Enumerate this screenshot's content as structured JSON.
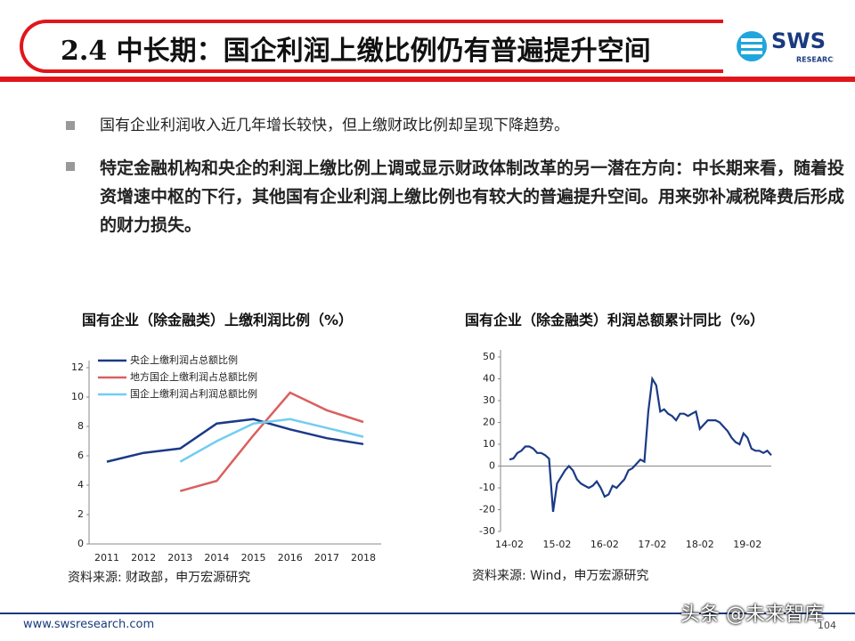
{
  "header": {
    "title": "2.4 中长期：国企利润上缴比例仍有普遍提升空间",
    "logo": "SWS",
    "logo_sub": "RESEARCH"
  },
  "bullets": [
    "国有企业利润收入近几年增长较快，但上缴财政比例却呈现下降趋势。",
    "特定金融机构和央企的利润上缴比例上调或显示财政体制改革的另一潜在方向：中长期来看，随着投资增速中枢的下行，其他国有企业利润上缴比例也有较大的普遍提升空间。用来弥补减税降费后形成的财力损失。"
  ],
  "chart_data": [
    {
      "type": "line",
      "title": "国有企业（除金融类）上缴利润比例（%）",
      "source": "资料来源: 财政部，申万宏源研究",
      "categories": [
        "2011",
        "2012",
        "2013",
        "2014",
        "2015",
        "2016",
        "2017",
        "2018"
      ],
      "series": [
        {
          "name": "央企上缴利润占总额比例",
          "color": "#1b3a86",
          "values": [
            5.6,
            6.2,
            6.5,
            8.2,
            8.5,
            7.8,
            7.2,
            6.8
          ]
        },
        {
          "name": "地方国企上缴利润占总额比例",
          "color": "#d9605f",
          "values": [
            null,
            null,
            3.6,
            4.3,
            7.4,
            10.3,
            9.1,
            8.3
          ]
        },
        {
          "name": "国企上缴利润占利润总额比例",
          "color": "#72cdf0",
          "values": [
            null,
            null,
            5.6,
            7.0,
            8.2,
            8.5,
            7.9,
            7.3
          ]
        }
      ],
      "ylim": [
        0,
        12
      ],
      "yticks": [
        0,
        2,
        4,
        6,
        8,
        10,
        12
      ],
      "legend": "upper-left",
      "grid": false
    },
    {
      "type": "line",
      "title": "国有企业（除金融类）利润总额累计同比（%）",
      "source": "资料来源: Wind，申万宏源研究",
      "categories": [
        "14-02",
        null,
        null,
        null,
        null,
        null,
        null,
        null,
        null,
        null,
        null,
        null,
        "15-02",
        null,
        null,
        null,
        null,
        null,
        null,
        null,
        null,
        null,
        null,
        null,
        "16-02",
        null,
        null,
        null,
        null,
        null,
        null,
        null,
        null,
        null,
        null,
        null,
        "17-02",
        null,
        null,
        null,
        null,
        null,
        null,
        null,
        null,
        null,
        null,
        null,
        "18-02",
        null,
        null,
        null,
        null,
        null,
        null,
        null,
        null,
        null,
        null,
        null,
        "19-02",
        null,
        null,
        null,
        null,
        null,
        null
      ],
      "series": [
        {
          "color": "#1b3a86",
          "values": [
            3,
            3.5,
            6,
            7,
            9,
            9,
            8,
            6,
            6,
            5,
            3.4,
            -21,
            -8,
            -5,
            -2,
            0,
            -2,
            -6,
            -8,
            -9,
            -10,
            -9,
            -7,
            -10,
            -14,
            -13,
            -9,
            -10,
            -8,
            -6,
            -2,
            -1,
            1,
            3,
            2,
            25,
            40,
            37,
            25,
            26,
            24,
            23,
            21,
            24,
            24,
            23,
            24,
            25,
            17,
            19,
            21,
            21,
            21,
            20,
            18,
            16,
            13,
            11,
            10,
            15,
            13,
            8,
            7,
            7,
            6,
            7,
            5
          ]
        }
      ],
      "ylim": [
        -30,
        50
      ],
      "yticks": [
        -30,
        -20,
        -10,
        0,
        10,
        20,
        30,
        40,
        50
      ],
      "grid": false
    }
  ],
  "footer": {
    "url": "www.swsresearch.com",
    "page": "104",
    "watermark": "头条 @未来智库"
  }
}
